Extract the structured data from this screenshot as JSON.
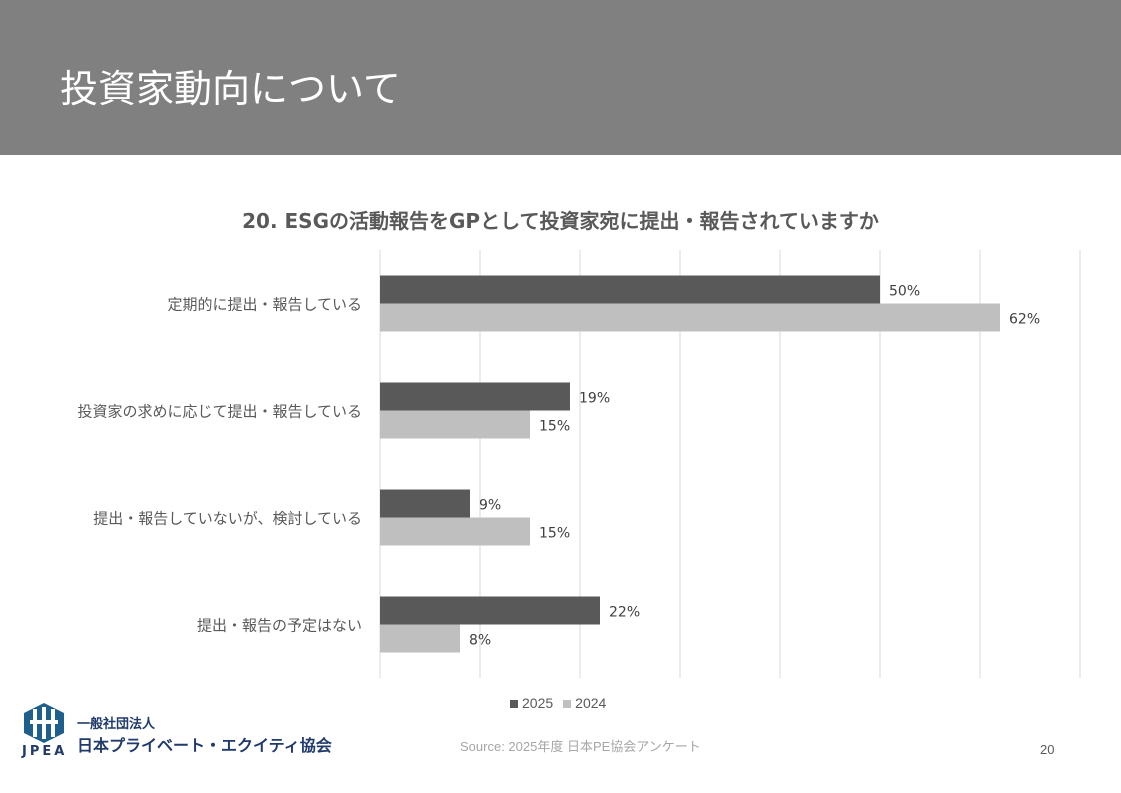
{
  "header": {
    "title": "投資家動向について"
  },
  "chart_data": {
    "type": "bar",
    "orientation": "horizontal",
    "title": "20. ESGの活動報告をGPとして投資家宛に提出・報告されていますか",
    "categories": [
      "定期的に提出・報告している",
      "投資家の求めに応じて提出・報告している",
      "提出・報告していないが、検討している",
      "提出・報告の予定はない"
    ],
    "series": [
      {
        "name": "2025",
        "color": "#595959",
        "values": [
          50,
          19,
          9,
          22
        ],
        "labels": [
          "50%",
          "19%",
          "9%",
          "22%"
        ]
      },
      {
        "name": "2024",
        "color": "#bfbfbf",
        "values": [
          62,
          15,
          15,
          8
        ],
        "labels": [
          "62%",
          "15%",
          "15%",
          "8%"
        ]
      }
    ],
    "xlim": [
      0,
      70
    ],
    "grid": true,
    "legend": "bottom"
  },
  "footer": {
    "source": "Source: 2025年度 日本PE協会アンケート",
    "page": "20",
    "org_line1": "一般社団法人",
    "org_line2": "日本プライベート・エクイティ協会",
    "logo_text": "JPEA"
  }
}
